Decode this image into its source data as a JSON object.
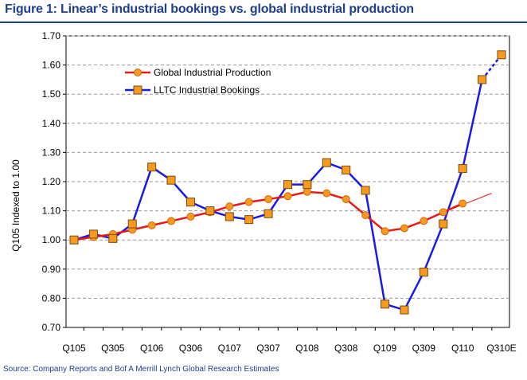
{
  "title": "Figure 1: Linear’s industrial bookings vs. global industrial production",
  "source": "Source: Company Reports and Bof A Merrill Lynch Global Research Estimates",
  "colors": {
    "title": "#1f3f8c",
    "bookings_line": "#1a1ae6",
    "production_line": "#e61919",
    "marker_fill": "#f79a1e",
    "marker_edge": "#7a4a10",
    "grid": "#999999"
  },
  "chart_data": {
    "type": "line",
    "title": "",
    "xlabel": "",
    "ylabel": "Q105 Indexed to 1.00",
    "ylim": [
      0.7,
      1.7
    ],
    "yticks": [
      "0.70",
      "0.80",
      "0.90",
      "1.00",
      "1.10",
      "1.20",
      "1.30",
      "1.40",
      "1.50",
      "1.60",
      "1.70"
    ],
    "grid": "horizontal dashed",
    "legend_position": "upper-left inside plot",
    "categories": [
      "Q105",
      "Q205",
      "Q305",
      "Q405",
      "Q106",
      "Q206",
      "Q306",
      "Q406",
      "Q107",
      "Q207",
      "Q307",
      "Q407",
      "Q108",
      "Q208",
      "Q308",
      "Q408",
      "Q109",
      "Q209",
      "Q309",
      "Q409",
      "Q110",
      "Q210",
      "Q310E"
    ],
    "x_tick_labels": [
      "Q105",
      "Q305",
      "Q106",
      "Q306",
      "Q107",
      "Q307",
      "Q108",
      "Q308",
      "Q109",
      "Q309",
      "Q110",
      "Q310E"
    ],
    "series": [
      {
        "name": "Global Industrial Production",
        "color": "#e61919",
        "marker": "circle",
        "values": [
          1.0,
          1.01,
          1.02,
          1.035,
          1.05,
          1.065,
          1.08,
          1.095,
          1.115,
          1.13,
          1.14,
          1.15,
          1.165,
          1.16,
          1.14,
          1.085,
          1.03,
          1.04,
          1.065,
          1.095,
          1.125,
          null,
          null
        ]
      },
      {
        "name": "LLTC  Industrial Bookings",
        "color": "#1a1ae6",
        "marker": "square",
        "values": [
          1.0,
          1.02,
          1.005,
          1.055,
          1.25,
          1.205,
          1.13,
          1.1,
          1.08,
          1.07,
          1.09,
          1.19,
          1.19,
          1.265,
          1.24,
          1.17,
          0.78,
          0.76,
          0.89,
          1.055,
          1.245,
          1.55,
          1.635
        ]
      }
    ],
    "annotations": [
      {
        "type": "dashed-segment",
        "series": "LLTC  Industrial Bookings",
        "from": "Q210",
        "to": "Q310E"
      },
      {
        "type": "trend-line",
        "series": "Global Industrial Production",
        "from": "Q409",
        "to_value": 1.16
      }
    ]
  }
}
